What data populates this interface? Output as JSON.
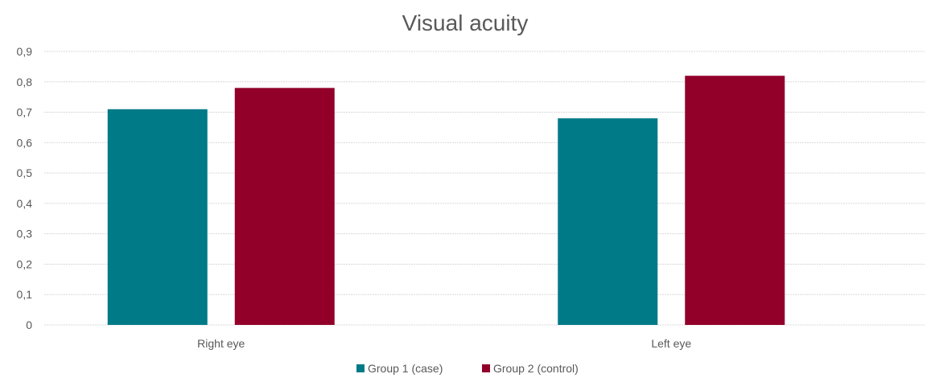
{
  "chart_data": {
    "type": "bar",
    "title": "Visual acuity",
    "categories": [
      "Right eye",
      "Left eye"
    ],
    "series": [
      {
        "name": "Group 1 (case)",
        "values": [
          0.71,
          0.68
        ],
        "color": "#007A87"
      },
      {
        "name": "Group 2 (control)",
        "values": [
          0.78,
          0.82
        ],
        "color": "#92002A"
      }
    ],
    "ylim": [
      0,
      0.9
    ],
    "yticks": [
      "0",
      "0,1",
      "0,2",
      "0,3",
      "0,4",
      "0,5",
      "0,6",
      "0,7",
      "0,8",
      "0,9"
    ],
    "grid": true,
    "legend_position": "bottom"
  }
}
